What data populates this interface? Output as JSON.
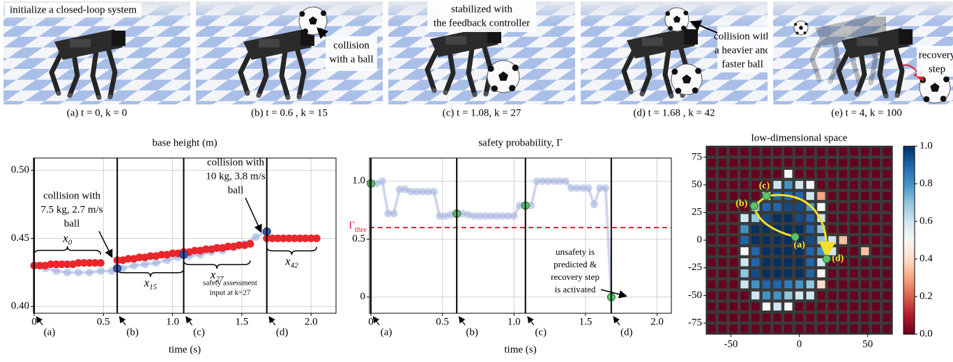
{
  "panels": [
    {
      "caption": "(a) t = 0, k = 0",
      "note": [
        "initialize a closed-loop system"
      ]
    },
    {
      "caption": "(b) t = 0.6 , k = 15",
      "note": [
        "collision",
        "with a ball"
      ]
    },
    {
      "caption": "(c) t = 1.08, k = 27",
      "note": [
        "stabilized with",
        "the feedback controller"
      ]
    },
    {
      "caption": "(d) t = 1.68 , k = 42",
      "note": [
        "collision with",
        "a heavier and",
        "faster ball"
      ]
    },
    {
      "caption": "(e) t = 4, k = 100",
      "note": [
        "recovery",
        "step"
      ]
    }
  ],
  "chart_data": [
    {
      "type": "line",
      "title": "base height (m)",
      "x_label": "time (s)",
      "xlim": [
        -0.005,
        2.18
      ],
      "ylim": [
        0.395,
        0.509
      ],
      "xticks": [
        0,
        0.5,
        {
          "value": 1,
          "label": "1.0"
        },
        1.5,
        {
          "value": 2,
          "label": "2.0"
        }
      ],
      "yticks": [
        {
          "value": 0.4,
          "label": "0.40"
        },
        0.45,
        {
          "value": 0.5,
          "label": "0.50"
        }
      ],
      "grid": true,
      "series": [
        {
          "color": "#9fb0de",
          "connected": true,
          "x": [
            0,
            0.08,
            0.16,
            0.24,
            0.32,
            0.4,
            0.48,
            0.56,
            0.64,
            0.72,
            0.8,
            0.88,
            0.96,
            1.04,
            1.12,
            1.2,
            1.28,
            1.36,
            1.44,
            1.52,
            1.6,
            1.68
          ],
          "values": [
            0.43,
            0.428,
            0.426,
            0.425,
            0.425,
            0.425,
            0.426,
            0.426,
            0.428,
            0.43,
            0.431,
            0.432,
            0.434,
            0.436,
            0.437,
            0.438,
            0.44,
            0.441,
            0.443,
            0.446,
            0.451,
            0.455
          ]
        },
        {
          "color": "#e8262b",
          "label": "x",
          "sub": "0",
          "x": [
            0,
            0.04,
            0.08,
            0.12,
            0.16,
            0.2,
            0.24,
            0.28,
            0.32,
            0.36,
            0.4,
            0.44,
            0.48
          ],
          "values": [
            0.43,
            0.43,
            0.43,
            0.431,
            0.431,
            0.431,
            0.431,
            0.431,
            0.432,
            0.432,
            0.432,
            0.432,
            0.432
          ]
        },
        {
          "color": "#e8262b",
          "label": "x",
          "sub": "15",
          "x": [
            0.6,
            0.64,
            0.68,
            0.72,
            0.76,
            0.8,
            0.84,
            0.88,
            0.92,
            0.96,
            1,
            1.04,
            1.08
          ],
          "values": [
            0.434,
            0.434,
            0.435,
            0.435,
            0.436,
            0.436,
            0.437,
            0.437,
            0.438,
            0.438,
            0.439,
            0.439,
            0.44
          ]
        },
        {
          "color": "#e8262b",
          "label": "x",
          "sub": "27",
          "x": [
            1.08,
            1.12,
            1.16,
            1.2,
            1.24,
            1.28,
            1.32,
            1.36,
            1.4,
            1.44,
            1.48,
            1.52,
            1.56
          ],
          "values": [
            0.44,
            0.44,
            0.441,
            0.441,
            0.442,
            0.442,
            0.443,
            0.443,
            0.444,
            0.444,
            0.445,
            0.445,
            0.446
          ]
        },
        {
          "color": "#e8262b",
          "label": "x",
          "sub": "42",
          "x": [
            1.68,
            1.72,
            1.76,
            1.8,
            1.84,
            1.88,
            1.92,
            1.96,
            2,
            2.04
          ],
          "values": [
            0.45,
            0.45,
            0.45,
            0.45,
            0.45,
            0.45,
            0.45,
            0.45,
            0.45,
            0.45
          ]
        },
        {
          "color": "#3a57b0",
          "edgecolor": "#1f2f66",
          "x": [
            0.6,
            1.08,
            1.68
          ],
          "values": [
            0.428,
            0.438,
            0.455
          ]
        }
      ],
      "events": {
        "x": [
          0,
          0.6,
          1.08,
          1.68
        ],
        "labels": [
          "(a)",
          "(b)",
          "(c)",
          "(d)"
        ]
      },
      "annotations": [
        {
          "text": [
            "collision with",
            "7.5 kg, 2.7 m/s",
            "ball"
          ]
        },
        {
          "text": [
            "collision with",
            "10 kg, 3.8 m/s",
            "ball"
          ]
        },
        {
          "text": [
            "safety assessment",
            "input at k=27"
          ]
        }
      ]
    },
    {
      "type": "line",
      "title": "safety probability, Γ",
      "x_label": "time (s)",
      "xlim": [
        -0.01,
        2.1
      ],
      "ylim": [
        -0.14,
        1.2
      ],
      "xticks": [
        0,
        0.5,
        {
          "value": 1,
          "label": "1.0"
        },
        1.5,
        {
          "value": 2,
          "label": "2.0"
        }
      ],
      "yticks": [
        0,
        0.5,
        {
          "value": 1,
          "label": "1.0"
        }
      ],
      "grid": true,
      "series": [
        {
          "color": "#a9b7e0",
          "connected": true,
          "x": [
            0,
            0.04,
            0.08,
            0.12,
            0.16,
            0.2,
            0.24,
            0.28,
            0.32,
            0.36,
            0.4,
            0.44,
            0.48,
            0.52,
            0.56,
            0.6,
            0.64,
            0.68,
            0.72,
            0.76,
            0.8,
            0.84,
            0.88,
            0.92,
            0.96,
            1,
            1.04,
            1.08,
            1.12,
            1.16,
            1.2,
            1.24,
            1.28,
            1.32,
            1.36,
            1.4,
            1.44,
            1.48,
            1.52,
            1.56,
            1.6,
            1.64,
            1.68
          ],
          "values": [
            0.98,
            0.98,
            1,
            0.72,
            0.72,
            0.93,
            0.93,
            0.91,
            0.91,
            0.91,
            0.91,
            0.91,
            0.7,
            0.7,
            0.71,
            0.72,
            0.72,
            0.71,
            0.7,
            0.7,
            0.7,
            0.7,
            0.7,
            0.7,
            0.7,
            0.7,
            0.79,
            0.79,
            0.79,
            1,
            1,
            1,
            1,
            1,
            1,
            0.94,
            0.94,
            0.94,
            0.94,
            0.8,
            0.94,
            0.94,
            0
          ]
        },
        {
          "color": "#5cc46a",
          "edgecolor": "#2d6e35",
          "x": [
            0,
            0.6,
            1.08,
            1.68
          ],
          "values": [
            0.98,
            0.72,
            0.79,
            0
          ]
        }
      ],
      "threshold": {
        "value": 0.6,
        "label": "Γ",
        "sub": "thre",
        "color": "#e0212b"
      },
      "events": {
        "x": [
          0,
          0.6,
          1.08,
          1.68
        ],
        "labels": [
          "(a)",
          "(b)",
          "(c)",
          "(d)"
        ]
      },
      "annotations": [
        {
          "text": [
            "unsafety is",
            "predicted &",
            "recovery step",
            "is activated"
          ]
        }
      ]
    },
    {
      "type": "heatmap",
      "title": "low-dimensional space",
      "colormap": "RdBu",
      "xlim": [
        -68,
        68
      ],
      "ylim": [
        -85,
        85
      ],
      "xticks": [
        -50,
        0,
        50
      ],
      "yticks": [
        -75,
        -50,
        -25,
        0,
        25,
        50,
        75
      ],
      "clim": [
        0,
        1
      ],
      "cticks": [
        {
          "value": 0,
          "label": "0.0"
        },
        0.2,
        0.4,
        0.6,
        0.8,
        {
          "value": 1,
          "label": "1.0"
        }
      ],
      "x": [
        -64,
        -56,
        -48,
        -40,
        -32,
        -24,
        -16,
        -8,
        0,
        8,
        16,
        24,
        32,
        40,
        48,
        56,
        64
      ],
      "y": [
        80,
        70,
        60,
        50,
        40,
        30,
        20,
        10,
        0,
        -10,
        -20,
        -30,
        -40,
        -50,
        -60,
        -70,
        -80
      ],
      "z": [
        [
          0,
          0,
          0,
          0,
          0,
          0,
          0,
          0,
          0,
          0,
          0,
          0,
          0,
          0,
          0,
          0,
          0
        ],
        [
          0,
          0,
          0,
          0,
          0,
          0,
          0,
          0,
          0,
          0,
          0,
          0,
          0,
          0,
          0,
          0,
          0
        ],
        [
          0,
          0,
          0,
          0,
          0,
          0,
          0,
          0.5,
          0,
          0,
          0,
          0,
          0,
          0,
          0,
          0,
          0
        ],
        [
          0,
          0,
          0,
          0,
          0,
          0,
          0.6,
          0.8,
          0.6,
          0.5,
          0,
          0,
          0,
          0,
          0,
          0,
          0
        ],
        [
          0,
          0,
          0,
          0,
          0,
          0.5,
          0.9,
          0.9,
          0.9,
          0.6,
          0.3,
          0,
          0,
          0,
          0,
          0,
          0
        ],
        [
          0,
          0,
          0,
          0,
          0.7,
          0.9,
          0.9,
          0.95,
          0.95,
          0.8,
          0.5,
          0,
          0,
          0,
          0,
          0,
          0
        ],
        [
          0,
          0,
          0,
          0.6,
          0.7,
          0.95,
          1,
          1,
          0.95,
          0.9,
          0.6,
          0,
          0,
          0,
          0,
          0,
          0
        ],
        [
          0,
          0,
          0,
          0.8,
          1,
          1,
          1,
          1,
          1,
          0.9,
          0.7,
          0,
          0,
          0,
          0,
          0,
          0
        ],
        [
          0,
          0,
          0,
          0.9,
          1,
          1,
          1,
          1,
          1,
          0.95,
          0.7,
          0.6,
          0.35,
          0,
          0,
          0,
          0
        ],
        [
          0,
          0,
          0,
          0.5,
          0.9,
          1,
          1,
          1,
          1,
          0.9,
          0.8,
          0.6,
          0,
          0,
          0.35,
          0,
          0
        ],
        [
          0,
          0,
          0,
          0.6,
          0.9,
          1,
          1,
          1,
          1,
          0.9,
          0.6,
          0,
          0,
          0,
          0,
          0,
          0
        ],
        [
          0,
          0,
          0,
          0.7,
          0.95,
          1,
          1,
          1,
          1,
          0.9,
          0.5,
          0,
          0,
          0,
          0,
          0,
          0
        ],
        [
          0,
          0,
          0,
          0.6,
          0.8,
          0.9,
          0.9,
          0.85,
          0.8,
          0.7,
          0.4,
          0,
          0,
          0,
          0,
          0,
          0
        ],
        [
          0,
          0,
          0,
          0,
          0.6,
          0.8,
          0.8,
          0.7,
          0.6,
          0.6,
          0,
          0,
          0,
          0,
          0,
          0,
          0
        ],
        [
          0,
          0,
          0,
          0,
          0,
          0.5,
          0.6,
          0.5,
          0,
          0,
          0,
          0,
          0,
          0,
          0,
          0,
          0
        ],
        [
          0,
          0,
          0,
          0,
          0,
          0,
          0,
          0,
          0,
          0,
          0,
          0,
          0,
          0,
          0,
          0,
          0
        ],
        [
          0,
          0,
          0,
          0,
          0,
          0,
          0,
          0,
          0,
          0,
          0,
          0,
          0,
          0,
          0,
          0,
          0
        ]
      ],
      "points": {
        "labels": [
          "(a)",
          "(b)",
          "(c)",
          "(d)"
        ],
        "x": [
          -3,
          -33,
          -24,
          20
        ],
        "y": [
          3,
          31,
          40,
          -17
        ],
        "color": "#5cc46a"
      },
      "path_color": "#f5e12a"
    }
  ]
}
